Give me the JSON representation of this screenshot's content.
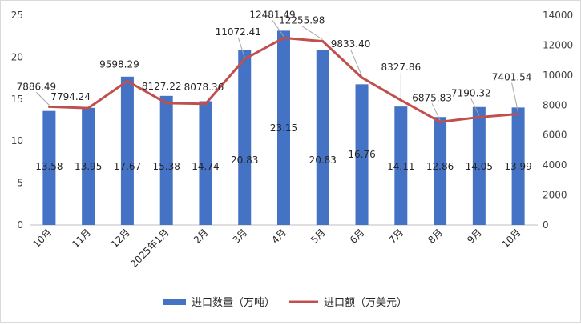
{
  "chart_data": {
    "type": "bar+line",
    "categories": [
      "10月",
      "11月",
      "12月",
      "2025年1月",
      "2月",
      "3月",
      "4月",
      "5月",
      "6月",
      "7月",
      "8月",
      "9月",
      "10月"
    ],
    "series": [
      {
        "name": "进口数量（万吨）",
        "type": "bar",
        "axis": "left",
        "color": "#4472c4",
        "values": [
          13.58,
          13.95,
          17.67,
          15.38,
          14.74,
          20.83,
          23.15,
          20.83,
          16.76,
          14.11,
          12.86,
          14.05,
          13.99
        ],
        "labels": [
          "13.58",
          "13.95",
          "17.67",
          "15.38",
          "14.74",
          "20.83",
          "23.15",
          "20.83",
          "16.76",
          "14.11",
          "12.86",
          "14.05",
          "13.99"
        ]
      },
      {
        "name": "进口额（万美元）",
        "type": "line",
        "axis": "right",
        "color": "#c0504d",
        "values": [
          7886.49,
          7794.24,
          9598.29,
          8127.22,
          8078.36,
          11072.41,
          12481.49,
          12255.98,
          9833.4,
          8327.86,
          6875.83,
          7190.32,
          7401.54
        ],
        "labels": [
          "7886.49",
          "7794.24",
          "9598.29",
          "8127.22",
          "8078.36",
          "11072.41",
          "12481.49",
          "12255.98",
          "9833.40",
          "8327.86",
          "6875.83",
          "7190.32",
          "7401.54"
        ]
      }
    ],
    "y_left": {
      "min": 0,
      "max": 25,
      "ticks": [
        "0",
        "5",
        "10",
        "15",
        "20",
        "25"
      ]
    },
    "y_right": {
      "min": 0,
      "max": 14000,
      "ticks": [
        "0",
        "2000",
        "4000",
        "6000",
        "8000",
        "10000",
        "12000",
        "14000"
      ]
    },
    "grid": false,
    "legend_position": "bottom"
  }
}
